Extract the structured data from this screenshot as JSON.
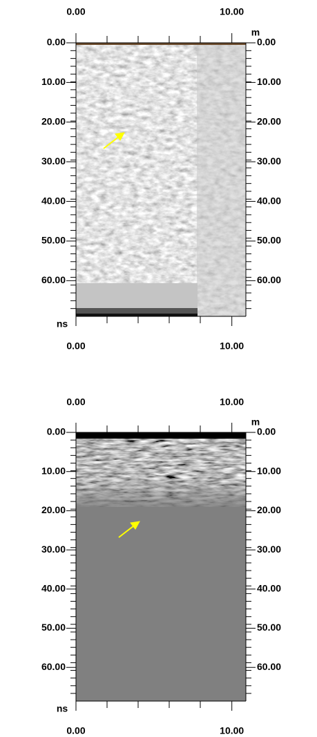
{
  "chart_data": [
    {
      "type": "radargram",
      "x_unit": "m",
      "y_unit": "ns",
      "xlim": [
        0,
        10.9
      ],
      "ylim": [
        0,
        69
      ],
      "xticks": [
        {
          "value": 0,
          "label": "0.00"
        },
        {
          "value": 10,
          "label": "10.00"
        }
      ],
      "yticks": [
        {
          "value": 0,
          "label": "0.00"
        },
        {
          "value": 10,
          "label": "10.00"
        },
        {
          "value": 20,
          "label": "20.00"
        },
        {
          "value": 30,
          "label": "30.00"
        },
        {
          "value": 40,
          "label": "40.00"
        },
        {
          "value": 50,
          "label": "50.00"
        },
        {
          "value": 60,
          "label": "60.00"
        }
      ]
    },
    {
      "type": "radargram",
      "x_unit": "m",
      "y_unit": "ns",
      "xlim": [
        0,
        10.9
      ],
      "ylim": [
        0,
        68.6
      ],
      "xticks": [
        {
          "value": 0,
          "label": "0.00"
        },
        {
          "value": 10,
          "label": "10.00"
        }
      ],
      "yticks": [
        {
          "value": 0,
          "label": "0.00"
        },
        {
          "value": 10,
          "label": "10.00"
        },
        {
          "value": 20,
          "label": "20.00"
        },
        {
          "value": 30,
          "label": "30.00"
        },
        {
          "value": 40,
          "label": "40.00"
        },
        {
          "value": 50,
          "label": "50.00"
        },
        {
          "value": 60,
          "label": "60.00"
        }
      ]
    }
  ]
}
